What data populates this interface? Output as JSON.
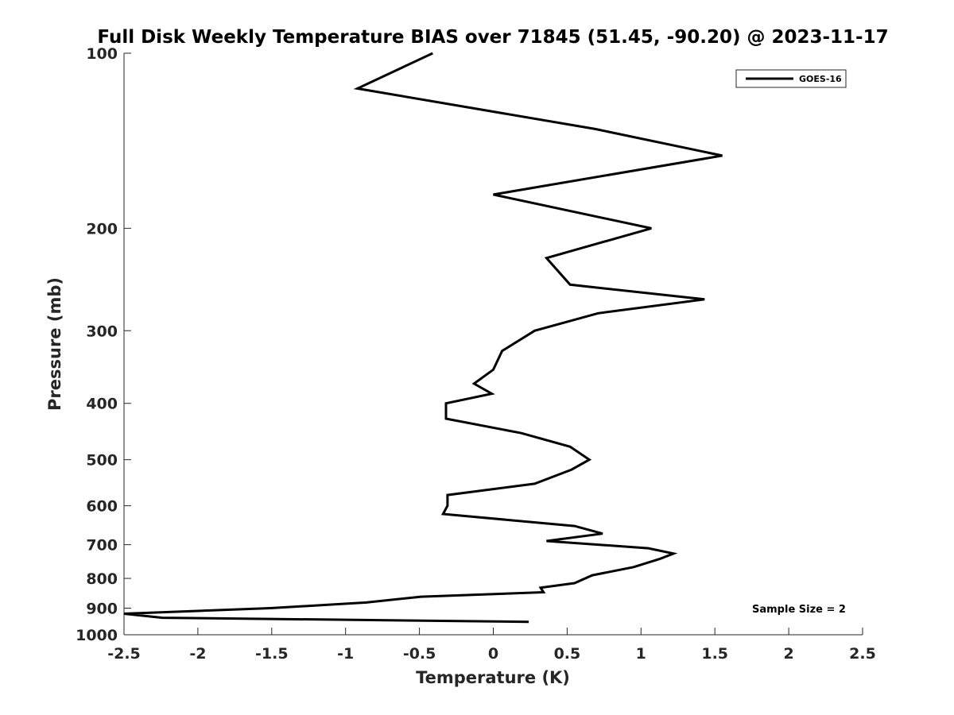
{
  "chart_data": {
    "type": "line",
    "title": "Full Disk Weekly Temperature BIAS over 71845 (51.45, -90.20) @ 2023-11-17",
    "xlabel": "Temperature (K)",
    "ylabel": "Pressure (mb)",
    "xlim": [
      -2.5,
      2.5
    ],
    "ylim": [
      100,
      1000
    ],
    "y_scale": "log",
    "y_reversed": true,
    "x_ticks": [
      -2.5,
      -2,
      -1.5,
      -1,
      -0.5,
      0,
      0.5,
      1,
      1.5,
      2,
      2.5
    ],
    "x_tick_labels": [
      "-2.5",
      "-2",
      "-1.5",
      "-1",
      "-0.5",
      "0",
      "0.5",
      "1",
      "1.5",
      "2",
      "2.5"
    ],
    "y_ticks": [
      100,
      200,
      300,
      400,
      500,
      600,
      700,
      800,
      900,
      1000
    ],
    "y_tick_labels": [
      "100",
      "200",
      "300",
      "400",
      "500",
      "600",
      "700",
      "800",
      "900",
      "1000"
    ],
    "grid": false,
    "legend_position": "top-right",
    "annotation": "Sample Size = 2",
    "series": [
      {
        "name": "GOES-16",
        "color": "#000000",
        "points": [
          {
            "x": -0.41,
            "p": 100
          },
          {
            "x": -0.92,
            "p": 115
          },
          {
            "x": 0.69,
            "p": 135
          },
          {
            "x": 1.55,
            "p": 150
          },
          {
            "x": 0.0,
            "p": 175
          },
          {
            "x": 1.07,
            "p": 200
          },
          {
            "x": 0.36,
            "p": 225
          },
          {
            "x": 0.52,
            "p": 250
          },
          {
            "x": 1.43,
            "p": 265
          },
          {
            "x": 0.71,
            "p": 280
          },
          {
            "x": 0.28,
            "p": 300
          },
          {
            "x": 0.06,
            "p": 325
          },
          {
            "x": 0.0,
            "p": 350
          },
          {
            "x": -0.13,
            "p": 370
          },
          {
            "x": -0.01,
            "p": 385
          },
          {
            "x": -0.32,
            "p": 400
          },
          {
            "x": -0.32,
            "p": 425
          },
          {
            "x": 0.19,
            "p": 450
          },
          {
            "x": 0.52,
            "p": 475
          },
          {
            "x": 0.65,
            "p": 500
          },
          {
            "x": 0.53,
            "p": 520
          },
          {
            "x": 0.28,
            "p": 550
          },
          {
            "x": -0.31,
            "p": 575
          },
          {
            "x": -0.31,
            "p": 600
          },
          {
            "x": -0.34,
            "p": 620
          },
          {
            "x": 0.55,
            "p": 650
          },
          {
            "x": 0.74,
            "p": 670
          },
          {
            "x": 0.36,
            "p": 690
          },
          {
            "x": 1.05,
            "p": 710
          },
          {
            "x": 1.22,
            "p": 725
          },
          {
            "x": 1.13,
            "p": 740
          },
          {
            "x": 0.95,
            "p": 765
          },
          {
            "x": 0.67,
            "p": 790
          },
          {
            "x": 0.55,
            "p": 815
          },
          {
            "x": 0.32,
            "p": 830
          },
          {
            "x": 0.34,
            "p": 845
          },
          {
            "x": -0.49,
            "p": 860
          },
          {
            "x": -0.86,
            "p": 880
          },
          {
            "x": -1.51,
            "p": 900
          },
          {
            "x": -2.5,
            "p": 920
          },
          {
            "x": -2.24,
            "p": 935
          },
          {
            "x": 0.24,
            "p": 950
          }
        ]
      }
    ]
  }
}
